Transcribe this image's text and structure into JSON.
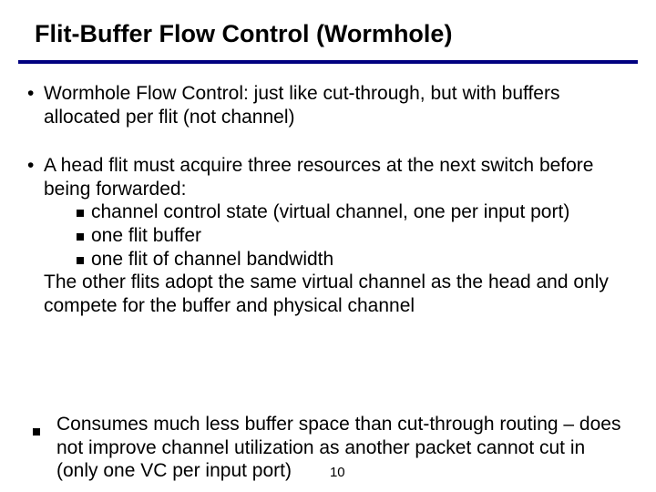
{
  "title": "Flit-Buffer Flow Control (Wormhole)",
  "rule_color": "#000080",
  "bullets": {
    "b1": {
      "text": "Wormhole Flow Control: just like cut-through, but with buffers allocated per flit (not channel)"
    },
    "b2": {
      "intro": "A head flit must acquire three resources at the next switch before being forwarded:",
      "subs": {
        "s1": "channel control state (virtual channel, one per input port)",
        "s2": "one flit buffer",
        "s3": "one flit of channel bandwidth"
      },
      "outro": "The other flits adopt the same virtual channel as the head and only compete for the buffer and physical channel"
    },
    "b3": {
      "text": "Consumes much less buffer space than cut-through routing – does not improve channel utilization as another packet cannot cut in (only one VC per input port)"
    }
  },
  "page_number": "10"
}
